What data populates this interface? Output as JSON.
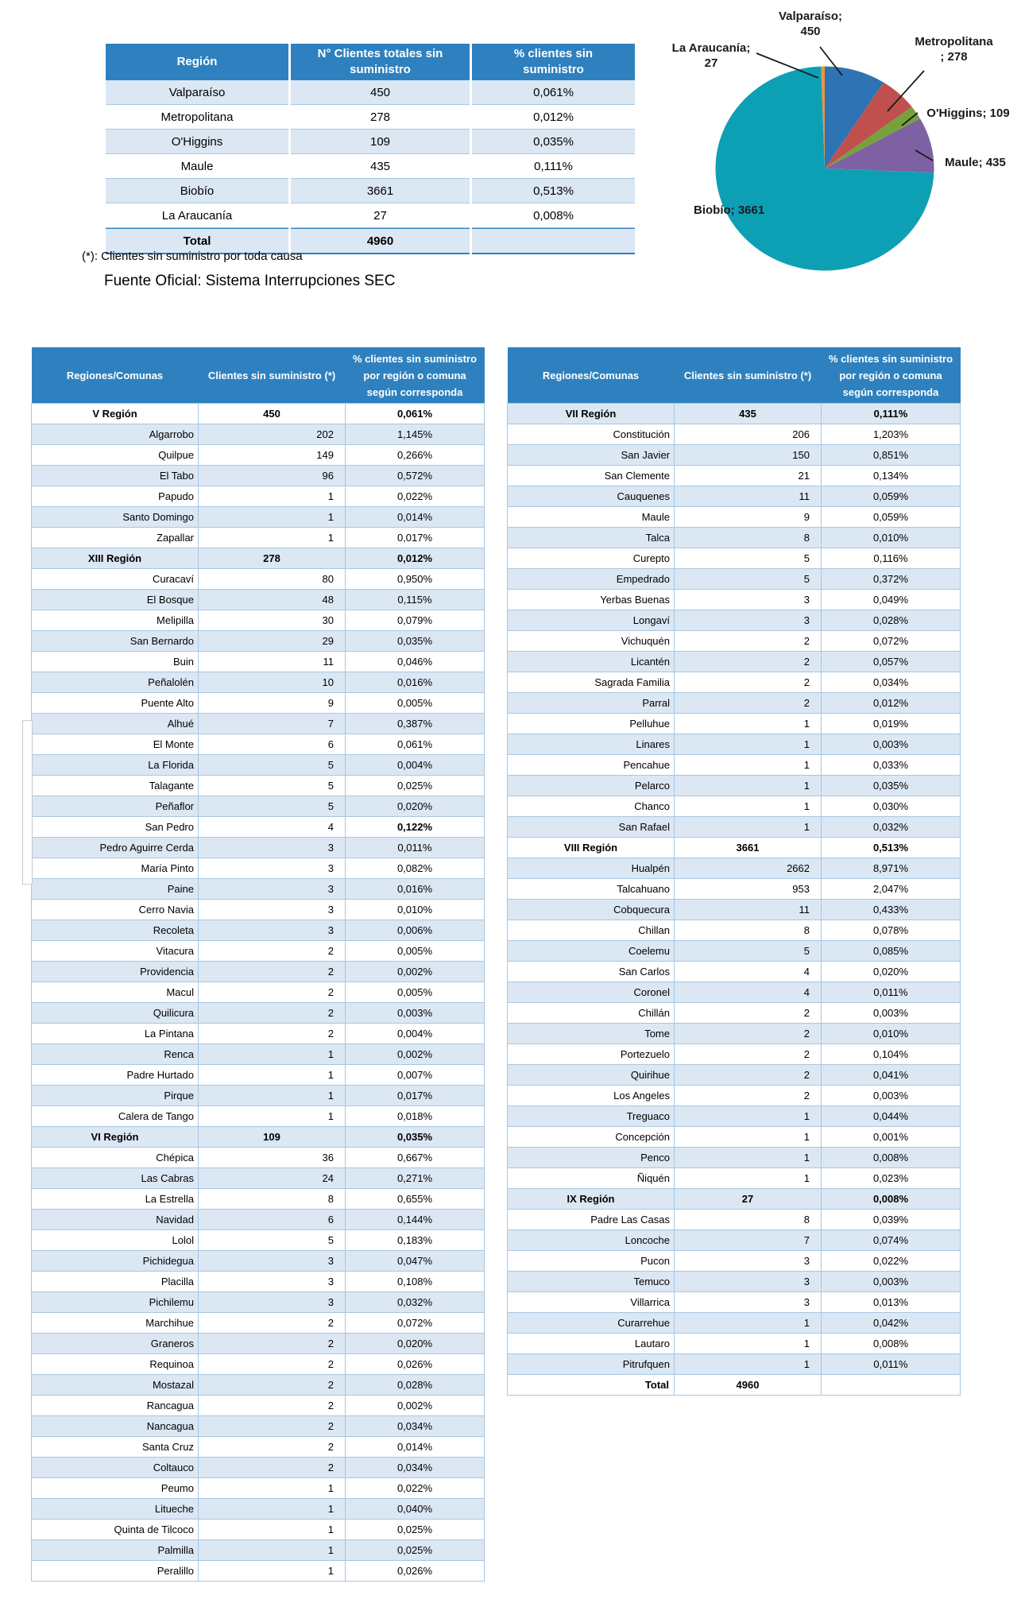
{
  "summary_table": {
    "headers": [
      "Región",
      "N° Clientes totales sin suministro",
      "% clientes sin suministro"
    ],
    "rows": [
      {
        "region": "Valparaíso",
        "clients": "450",
        "pct": "0,061%"
      },
      {
        "region": "Metropolitana",
        "clients": "278",
        "pct": "0,012%"
      },
      {
        "region": "O'Higgins",
        "clients": "109",
        "pct": "0,035%"
      },
      {
        "region": "Maule",
        "clients": "435",
        "pct": "0,111%"
      },
      {
        "region": "Biobío",
        "clients": "3661",
        "pct": "0,513%"
      },
      {
        "region": "La Araucanía",
        "clients": "27",
        "pct": "0,008%"
      }
    ],
    "total": {
      "label": "Total",
      "clients": "4960",
      "pct": ""
    }
  },
  "note": "(*): Clientes sin suministro por toda causa",
  "source": "Fuente Oficial: Sistema Interrupciones SEC",
  "chart_data": {
    "type": "pie",
    "title": "",
    "categories": [
      "Valparaíso",
      "Metropolitana",
      "O'Higgins",
      "Maule",
      "Biobío",
      "La Araucanía"
    ],
    "values": [
      450,
      278,
      109,
      435,
      3661,
      27
    ],
    "colors": [
      "#2E73B4",
      "#C0504D",
      "#76A13C",
      "#7E61A3",
      "#0DA0B5",
      "#F0913D"
    ],
    "legend_position": "callouts",
    "callouts": {
      "valparaiso": {
        "l1": "Valparaíso;",
        "l2": "450"
      },
      "araucania": {
        "l1": "La Araucanía;",
        "l2": "27"
      },
      "metropolitana": {
        "l1": "Metropolitana",
        "l2": "; 278"
      },
      "ohiggins": {
        "l1": "O'Higgins; 109"
      },
      "maule": {
        "l1": "Maule; 435"
      },
      "biobio": {
        "l1": "Biobío; 3661"
      }
    }
  },
  "region_tables": {
    "headers": [
      "Regiones/Comunas",
      "Clientes sin suministro (*)",
      "% clientes sin suministro por región o comuna según corresponda"
    ],
    "left": {
      "first_row_shaded": false,
      "rows": [
        {
          "type": "region",
          "name": "V Región",
          "clients": "450",
          "pct": "0,061%"
        },
        {
          "type": "commune",
          "name": "Algarrobo",
          "clients": "202",
          "pct": "1,145%"
        },
        {
          "type": "commune",
          "name": "Quilpue",
          "clients": "149",
          "pct": "0,266%"
        },
        {
          "type": "commune",
          "name": "El Tabo",
          "clients": "96",
          "pct": "0,572%"
        },
        {
          "type": "commune",
          "name": "Papudo",
          "clients": "1",
          "pct": "0,022%"
        },
        {
          "type": "commune",
          "name": "Santo Domingo",
          "clients": "1",
          "pct": "0,014%"
        },
        {
          "type": "commune",
          "name": "Zapallar",
          "clients": "1",
          "pct": "0,017%"
        },
        {
          "type": "region",
          "name": "XIII Región",
          "clients": "278",
          "pct": "0,012%"
        },
        {
          "type": "commune",
          "name": "Curacaví",
          "clients": "80",
          "pct": "0,950%"
        },
        {
          "type": "commune",
          "name": "El Bosque",
          "clients": "48",
          "pct": "0,115%"
        },
        {
          "type": "commune",
          "name": "Melipilla",
          "clients": "30",
          "pct": "0,079%"
        },
        {
          "type": "commune",
          "name": "San Bernardo",
          "clients": "29",
          "pct": "0,035%"
        },
        {
          "type": "commune",
          "name": "Buin",
          "clients": "11",
          "pct": "0,046%"
        },
        {
          "type": "commune",
          "name": "Peñalolén",
          "clients": "10",
          "pct": "0,016%"
        },
        {
          "type": "commune",
          "name": "Puente Alto",
          "clients": "9",
          "pct": "0,005%"
        },
        {
          "type": "commune",
          "name": "Alhué",
          "clients": "7",
          "pct": "0,387%"
        },
        {
          "type": "commune",
          "name": "El Monte",
          "clients": "6",
          "pct": "0,061%"
        },
        {
          "type": "commune",
          "name": "La Florida",
          "clients": "5",
          "pct": "0,004%"
        },
        {
          "type": "commune",
          "name": "Talagante",
          "clients": "5",
          "pct": "0,025%"
        },
        {
          "type": "commune",
          "name": "Peñaflor",
          "clients": "5",
          "pct": "0,020%"
        },
        {
          "type": "commune",
          "name": "San Pedro",
          "clients": "4",
          "pct": "0,122%",
          "bold_pct": true
        },
        {
          "type": "commune",
          "name": "Pedro Aguirre Cerda",
          "clients": "3",
          "pct": "0,011%"
        },
        {
          "type": "commune",
          "name": "María Pinto",
          "clients": "3",
          "pct": "0,082%"
        },
        {
          "type": "commune",
          "name": "Paine",
          "clients": "3",
          "pct": "0,016%"
        },
        {
          "type": "commune",
          "name": "Cerro Navia",
          "clients": "3",
          "pct": "0,010%"
        },
        {
          "type": "commune",
          "name": "Recoleta",
          "clients": "3",
          "pct": "0,006%"
        },
        {
          "type": "commune",
          "name": "Vitacura",
          "clients": "2",
          "pct": "0,005%"
        },
        {
          "type": "commune",
          "name": "Providencia",
          "clients": "2",
          "pct": "0,002%"
        },
        {
          "type": "commune",
          "name": "Macul",
          "clients": "2",
          "pct": "0,005%"
        },
        {
          "type": "commune",
          "name": "Quilicura",
          "clients": "2",
          "pct": "0,003%"
        },
        {
          "type": "commune",
          "name": "La Pintana",
          "clients": "2",
          "pct": "0,004%"
        },
        {
          "type": "commune",
          "name": "Renca",
          "clients": "1",
          "pct": "0,002%"
        },
        {
          "type": "commune",
          "name": "Padre Hurtado",
          "clients": "1",
          "pct": "0,007%"
        },
        {
          "type": "commune",
          "name": "Pirque",
          "clients": "1",
          "pct": "0,017%"
        },
        {
          "type": "commune",
          "name": "Calera de Tango",
          "clients": "1",
          "pct": "0,018%"
        },
        {
          "type": "region",
          "name": "VI Región",
          "clients": "109",
          "pct": "0,035%"
        },
        {
          "type": "commune",
          "name": "Chépica",
          "clients": "36",
          "pct": "0,667%"
        },
        {
          "type": "commune",
          "name": "Las Cabras",
          "clients": "24",
          "pct": "0,271%"
        },
        {
          "type": "commune",
          "name": "La Estrella",
          "clients": "8",
          "pct": "0,655%"
        },
        {
          "type": "commune",
          "name": "Navidad",
          "clients": "6",
          "pct": "0,144%"
        },
        {
          "type": "commune",
          "name": "Lolol",
          "clients": "5",
          "pct": "0,183%"
        },
        {
          "type": "commune",
          "name": "Pichidegua",
          "clients": "3",
          "pct": "0,047%"
        },
        {
          "type": "commune",
          "name": "Placilla",
          "clients": "3",
          "pct": "0,108%"
        },
        {
          "type": "commune",
          "name": "Pichilemu",
          "clients": "3",
          "pct": "0,032%"
        },
        {
          "type": "commune",
          "name": "Marchihue",
          "clients": "2",
          "pct": "0,072%"
        },
        {
          "type": "commune",
          "name": "Graneros",
          "clients": "2",
          "pct": "0,020%"
        },
        {
          "type": "commune",
          "name": "Requinoa",
          "clients": "2",
          "pct": "0,026%"
        },
        {
          "type": "commune",
          "name": "Mostazal",
          "clients": "2",
          "pct": "0,028%"
        },
        {
          "type": "commune",
          "name": "Rancagua",
          "clients": "2",
          "pct": "0,002%"
        },
        {
          "type": "commune",
          "name": "Nancagua",
          "clients": "2",
          "pct": "0,034%"
        },
        {
          "type": "commune",
          "name": "Santa Cruz",
          "clients": "2",
          "pct": "0,014%"
        },
        {
          "type": "commune",
          "name": "Coltauco",
          "clients": "2",
          "pct": "0,034%"
        },
        {
          "type": "commune",
          "name": "Peumo",
          "clients": "1",
          "pct": "0,022%"
        },
        {
          "type": "commune",
          "name": "Litueche",
          "clients": "1",
          "pct": "0,040%"
        },
        {
          "type": "commune",
          "name": "Quinta de Tilcoco",
          "clients": "1",
          "pct": "0,025%"
        },
        {
          "type": "commune",
          "name": "Palmilla",
          "clients": "1",
          "pct": "0,025%"
        },
        {
          "type": "commune",
          "name": "Peralillo",
          "clients": "1",
          "pct": "0,026%"
        }
      ]
    },
    "right": {
      "first_row_shaded": true,
      "rows": [
        {
          "type": "region",
          "name": "VII Región",
          "clients": "435",
          "pct": "0,111%"
        },
        {
          "type": "commune",
          "name": "Constitución",
          "clients": "206",
          "pct": "1,203%"
        },
        {
          "type": "commune",
          "name": "San Javier",
          "clients": "150",
          "pct": "0,851%"
        },
        {
          "type": "commune",
          "name": "San Clemente",
          "clients": "21",
          "pct": "0,134%"
        },
        {
          "type": "commune",
          "name": "Cauquenes",
          "clients": "11",
          "pct": "0,059%"
        },
        {
          "type": "commune",
          "name": "Maule",
          "clients": "9",
          "pct": "0,059%"
        },
        {
          "type": "commune",
          "name": "Talca",
          "clients": "8",
          "pct": "0,010%"
        },
        {
          "type": "commune",
          "name": "Curepto",
          "clients": "5",
          "pct": "0,116%"
        },
        {
          "type": "commune",
          "name": "Empedrado",
          "clients": "5",
          "pct": "0,372%"
        },
        {
          "type": "commune",
          "name": "Yerbas Buenas",
          "clients": "3",
          "pct": "0,049%"
        },
        {
          "type": "commune",
          "name": "Longaví",
          "clients": "3",
          "pct": "0,028%"
        },
        {
          "type": "commune",
          "name": "Vichuquén",
          "clients": "2",
          "pct": "0,072%"
        },
        {
          "type": "commune",
          "name": "Licantén",
          "clients": "2",
          "pct": "0,057%"
        },
        {
          "type": "commune",
          "name": "Sagrada Familia",
          "clients": "2",
          "pct": "0,034%"
        },
        {
          "type": "commune",
          "name": "Parral",
          "clients": "2",
          "pct": "0,012%"
        },
        {
          "type": "commune",
          "name": "Pelluhue",
          "clients": "1",
          "pct": "0,019%"
        },
        {
          "type": "commune",
          "name": "Linares",
          "clients": "1",
          "pct": "0,003%"
        },
        {
          "type": "commune",
          "name": "Pencahue",
          "clients": "1",
          "pct": "0,033%"
        },
        {
          "type": "commune",
          "name": "Pelarco",
          "clients": "1",
          "pct": "0,035%"
        },
        {
          "type": "commune",
          "name": "Chanco",
          "clients": "1",
          "pct": "0,030%"
        },
        {
          "type": "commune",
          "name": "San Rafael",
          "clients": "1",
          "pct": "0,032%"
        },
        {
          "type": "region",
          "name": "VIII Región",
          "clients": "3661",
          "pct": "0,513%"
        },
        {
          "type": "commune",
          "name": "Hualpén",
          "clients": "2662",
          "pct": "8,971%"
        },
        {
          "type": "commune",
          "name": "Talcahuano",
          "clients": "953",
          "pct": "2,047%"
        },
        {
          "type": "commune",
          "name": "Cobquecura",
          "clients": "11",
          "pct": "0,433%"
        },
        {
          "type": "commune",
          "name": "Chillan",
          "clients": "8",
          "pct": "0,078%"
        },
        {
          "type": "commune",
          "name": "Coelemu",
          "clients": "5",
          "pct": "0,085%"
        },
        {
          "type": "commune",
          "name": "San Carlos",
          "clients": "4",
          "pct": "0,020%"
        },
        {
          "type": "commune",
          "name": "Coronel",
          "clients": "4",
          "pct": "0,011%"
        },
        {
          "type": "commune",
          "name": "Chillán",
          "clients": "2",
          "pct": "0,003%"
        },
        {
          "type": "commune",
          "name": "Tome",
          "clients": "2",
          "pct": "0,010%"
        },
        {
          "type": "commune",
          "name": "Portezuelo",
          "clients": "2",
          "pct": "0,104%"
        },
        {
          "type": "commune",
          "name": "Quirihue",
          "clients": "2",
          "pct": "0,041%"
        },
        {
          "type": "commune",
          "name": "Los Angeles",
          "clients": "2",
          "pct": "0,003%"
        },
        {
          "type": "commune",
          "name": "Treguaco",
          "clients": "1",
          "pct": "0,044%"
        },
        {
          "type": "commune",
          "name": "Concepción",
          "clients": "1",
          "pct": "0,001%"
        },
        {
          "type": "commune",
          "name": "Penco",
          "clients": "1",
          "pct": "0,008%"
        },
        {
          "type": "commune",
          "name": "Ñiquén",
          "clients": "1",
          "pct": "0,023%"
        },
        {
          "type": "region",
          "name": "IX Región",
          "clients": "27",
          "pct": "0,008%"
        },
        {
          "type": "commune",
          "name": "Padre Las Casas",
          "clients": "8",
          "pct": "0,039%"
        },
        {
          "type": "commune",
          "name": "Loncoche",
          "clients": "7",
          "pct": "0,074%"
        },
        {
          "type": "commune",
          "name": "Pucon",
          "clients": "3",
          "pct": "0,022%"
        },
        {
          "type": "commune",
          "name": "Temuco",
          "clients": "3",
          "pct": "0,003%"
        },
        {
          "type": "commune",
          "name": "Villarrica",
          "clients": "3",
          "pct": "0,013%"
        },
        {
          "type": "commune",
          "name": "Curarrehue",
          "clients": "1",
          "pct": "0,042%"
        },
        {
          "type": "commune",
          "name": "Lautaro",
          "clients": "1",
          "pct": "0,008%"
        },
        {
          "type": "commune",
          "name": "Pitrufquen",
          "clients": "1",
          "pct": "0,011%"
        },
        {
          "type": "total",
          "name": "Total",
          "clients": "4960",
          "pct": ""
        }
      ]
    }
  },
  "colors": {
    "header_blue": "#2E81BE",
    "band_blue": "#DBE7F3",
    "grid_blue": "#A8C7E2"
  }
}
